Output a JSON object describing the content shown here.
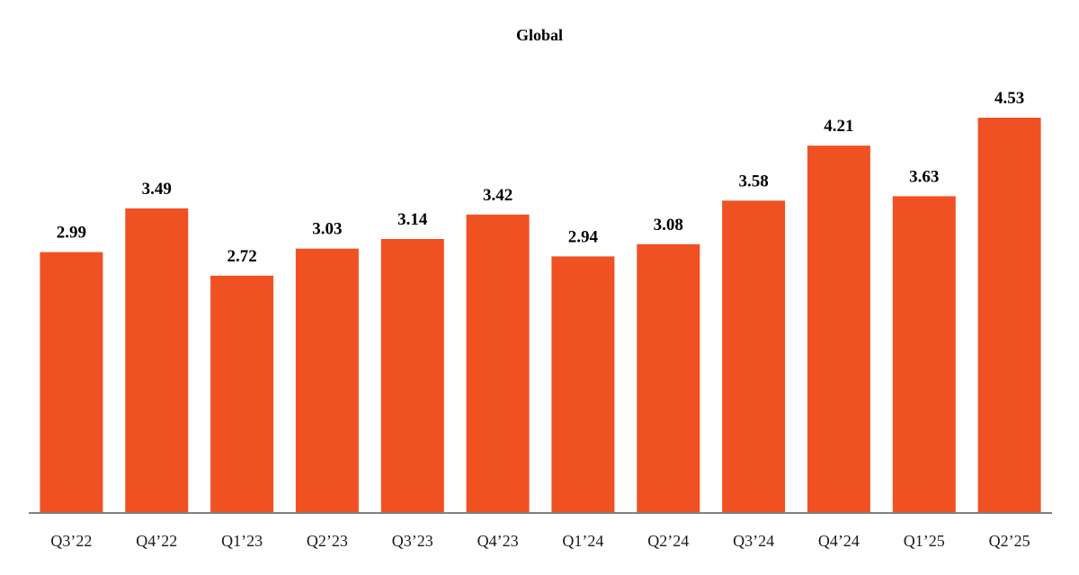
{
  "chart_data": {
    "type": "bar",
    "title": "Global",
    "xlabel": "",
    "ylabel": "",
    "categories": [
      "Q3’22",
      "Q4’22",
      "Q1’23",
      "Q2’23",
      "Q3’23",
      "Q4’23",
      "Q1’24",
      "Q2’24",
      "Q3’24",
      "Q4’24",
      "Q1’25",
      "Q2’25"
    ],
    "values": [
      2.99,
      3.49,
      2.72,
      3.03,
      3.14,
      3.42,
      2.94,
      3.08,
      3.58,
      4.21,
      3.63,
      4.53
    ],
    "value_labels": [
      "2.99",
      "3.49",
      "2.72",
      "3.03",
      "3.14",
      "3.42",
      "2.94",
      "3.08",
      "3.58",
      "4.21",
      "3.63",
      "4.53"
    ],
    "ylim": [
      0,
      4.53
    ],
    "grid": false,
    "legend": "none",
    "colors": {
      "bar": "#F05123",
      "axis": "#7f7f7f",
      "text": "#000000"
    }
  }
}
